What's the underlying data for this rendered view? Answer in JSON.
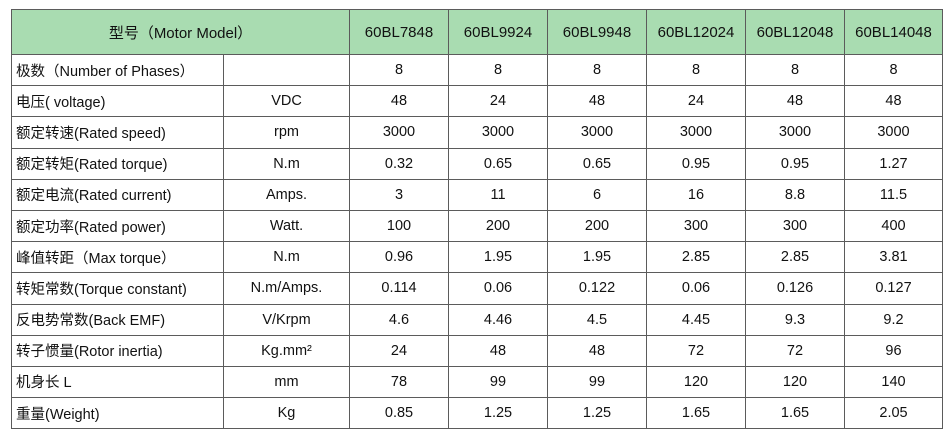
{
  "header": {
    "model_label": "型号（Motor Model）",
    "models": [
      "60BL7848",
      "60BL9924",
      "60BL9948",
      "60BL12024",
      "60BL12048",
      "60BL14048"
    ]
  },
  "rows": [
    {
      "label": "极数（Number of Phases）",
      "unit": "",
      "values": [
        "8",
        "8",
        "8",
        "8",
        "8",
        "8"
      ]
    },
    {
      "label": "电压( voltage)",
      "unit": "VDC",
      "values": [
        "48",
        "24",
        "48",
        "24",
        "48",
        "48"
      ]
    },
    {
      "label": "额定转速(Rated speed)",
      "unit": "rpm",
      "values": [
        "3000",
        "3000",
        "3000",
        "3000",
        "3000",
        "3000"
      ]
    },
    {
      "label": "额定转矩(Rated torque)",
      "unit": "N.m",
      "values": [
        "0.32",
        "0.65",
        "0.65",
        "0.95",
        "0.95",
        "1.27"
      ]
    },
    {
      "label": "额定电流(Rated current)",
      "unit": "Amps.",
      "values": [
        "3",
        "11",
        "6",
        "16",
        "8.8",
        "11.5"
      ]
    },
    {
      "label": "额定功率(Rated power)",
      "unit": "Watt.",
      "values": [
        "100",
        "200",
        "200",
        "300",
        "300",
        "400"
      ]
    },
    {
      "label": "峰值转距（Max torque）",
      "unit": "N.m",
      "values": [
        "0.96",
        "1.95",
        "1.95",
        "2.85",
        "2.85",
        "3.81"
      ]
    },
    {
      "label": "转矩常数(Torque constant)",
      "unit": "N.m/Amps.",
      "values": [
        "0.114",
        "0.06",
        "0.122",
        "0.06",
        "0.126",
        "0.127"
      ]
    },
    {
      "label": "反电势常数(Back EMF)",
      "unit": "V/Krpm",
      "values": [
        "4.6",
        "4.46",
        "4.5",
        "4.45",
        "9.3",
        "9.2"
      ]
    },
    {
      "label": "转子惯量(Rotor inertia)",
      "unit": "Kg.mm²",
      "values": [
        "24",
        "48",
        "48",
        "72",
        "72",
        "96"
      ]
    },
    {
      "label": "机身长 L",
      "unit": "mm",
      "values": [
        "78",
        "99",
        "99",
        "120",
        "120",
        "140"
      ]
    },
    {
      "label": "重量(Weight)",
      "unit": "Kg",
      "values": [
        "0.85",
        "1.25",
        "1.25",
        "1.65",
        "1.65",
        "2.05"
      ]
    }
  ]
}
